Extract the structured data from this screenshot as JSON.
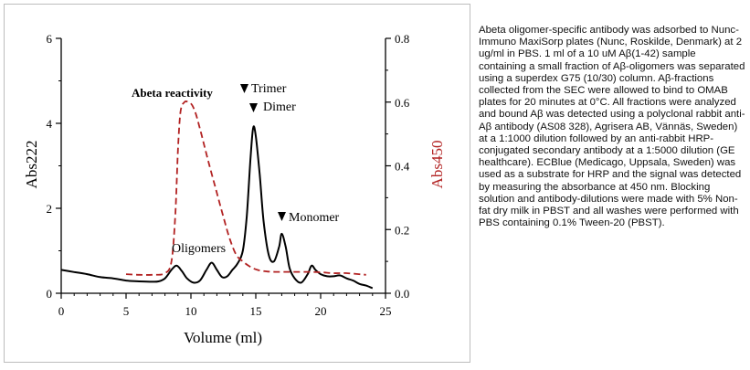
{
  "chart_data": {
    "type": "line",
    "xlabel": "Volume (ml)",
    "ylabel_left": "Abs222",
    "ylabel_right": "Abs450",
    "xlim": [
      0,
      25
    ],
    "ylim_left": [
      0,
      6
    ],
    "ylim_right": [
      0,
      0.8
    ],
    "x_ticks": [
      0,
      5,
      10,
      15,
      20,
      25
    ],
    "y_left_ticks": [
      0,
      2,
      4,
      6
    ],
    "y_right_ticks": [
      "0.0",
      "0.2",
      "0.4",
      "0.6",
      "0.8"
    ],
    "grid": false,
    "colors": {
      "abs222": "#000000",
      "abs450": "#b22222"
    },
    "series": [
      {
        "axis": "left",
        "style": "solid",
        "x": [
          0,
          1,
          2,
          3,
          4,
          5,
          6,
          7,
          7.5,
          8,
          8.5,
          8.9,
          9.3,
          9.7,
          10.2,
          10.7,
          11.2,
          11.6,
          12,
          12.4,
          12.8,
          13.2,
          13.6,
          14,
          14.3,
          14.6,
          14.8,
          15,
          15.3,
          15.6,
          16,
          16.4,
          16.8,
          17,
          17.3,
          17.6,
          18,
          18.5,
          19,
          19.3,
          19.6,
          20,
          20.5,
          21,
          21.5,
          22,
          22.5,
          23,
          23.5,
          24
        ],
        "values": [
          0.55,
          0.5,
          0.45,
          0.38,
          0.35,
          0.3,
          0.28,
          0.27,
          0.28,
          0.35,
          0.55,
          0.65,
          0.52,
          0.35,
          0.25,
          0.3,
          0.55,
          0.72,
          0.55,
          0.38,
          0.4,
          0.55,
          0.7,
          1.0,
          1.8,
          3.2,
          3.9,
          3.7,
          2.8,
          1.7,
          0.9,
          0.75,
          1.1,
          1.4,
          1.1,
          0.6,
          0.35,
          0.25,
          0.45,
          0.65,
          0.55,
          0.45,
          0.4,
          0.4,
          0.42,
          0.35,
          0.3,
          0.22,
          0.18,
          0.12
        ]
      },
      {
        "axis": "right",
        "style": "dashed",
        "x": [
          5,
          6,
          7,
          8,
          8.5,
          8.8,
          9,
          9.2,
          9.5,
          9.8,
          10.1,
          10.4,
          10.8,
          11.3,
          11.9,
          12.5,
          13,
          13.5,
          14,
          14.5,
          15,
          15.5,
          16,
          16.5,
          17,
          17.5,
          18,
          19,
          20,
          21,
          22,
          23.5
        ],
        "values": [
          0.06,
          0.058,
          0.058,
          0.063,
          0.1,
          0.25,
          0.45,
          0.57,
          0.6,
          0.6,
          0.59,
          0.56,
          0.5,
          0.42,
          0.33,
          0.24,
          0.17,
          0.12,
          0.1,
          0.085,
          0.075,
          0.07,
          0.068,
          0.067,
          0.067,
          0.067,
          0.067,
          0.067,
          0.066,
          0.063,
          0.063,
          0.058
        ]
      }
    ],
    "annotations": {
      "abeta_reactivity": "Abeta reactivity",
      "trimer": "Trimer",
      "dimer": "Dimer",
      "monomer": "Monomer",
      "oligomers": "Oligomers"
    }
  },
  "caption": "Abeta oligomer-specific antibody was adsorbed to Nunc-Immuno MaxiSorp plates (Nunc, Roskilde, Denmark) at 2 ug/ml in PBS. 1 ml of a 10 uM Aβ(1-42) sample containing a small fraction of Aβ-oligomers was separated using a superdex G75 (10/30) column. Aβ-fractions collected from the SEC were allowed to bind to OMAB plates for 20 minutes at 0°C. All fractions were analyzed and bound Aβ was detected using a polyclonal rabbit anti-Aβ antibody (AS08 328), Agrisera AB, Vännäs, Sweden) at a 1:1000 dilution followed by an anti-rabbit HRP-conjugated secondary antibody at a 1:5000 dilution (GE healthcare). ECBlue (Medicago, Uppsala, Sweden) was used as a substrate for HRP and the signal was detected by measuring the absorbance at 450 nm. Blocking solution and antibody-dilutions were made with 5% Non-fat dry milk in PBST and all washes were performed with PBS containing 0.1% Tween-20 (PBST)."
}
